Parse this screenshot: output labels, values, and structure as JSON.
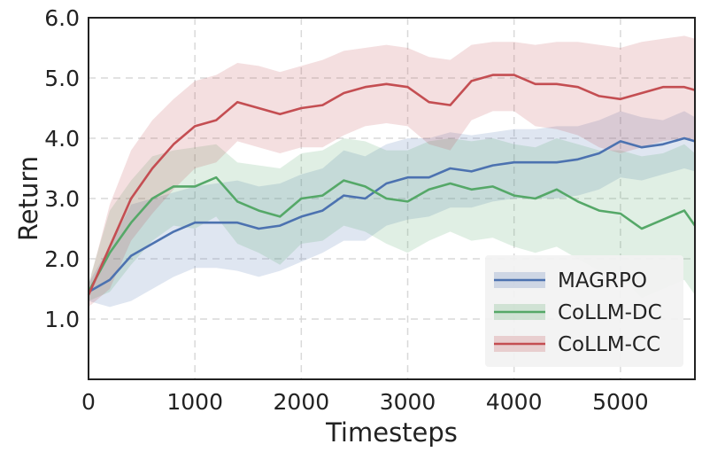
{
  "chart_data": {
    "type": "line",
    "xlabel": "Timesteps",
    "ylabel": "Return",
    "xlim": [
      0,
      5700
    ],
    "ylim": [
      0,
      6.0
    ],
    "xticks": [
      0,
      1000,
      2000,
      3000,
      4000,
      5000
    ],
    "xtick_labels": [
      "0",
      "1000",
      "2000",
      "3000",
      "4000",
      "5000"
    ],
    "yticks": [
      1,
      2,
      3,
      4,
      5,
      6
    ],
    "ytick_labels": [
      "1.0",
      "2.0",
      "3.0",
      "4.0",
      "5.0",
      "6.0"
    ],
    "grid": true,
    "legend_position": "bottom-right",
    "x": [
      0,
      200,
      400,
      600,
      800,
      1000,
      1200,
      1400,
      1600,
      1800,
      2000,
      2200,
      2400,
      2600,
      2800,
      3000,
      3200,
      3400,
      3600,
      3800,
      4000,
      4200,
      4400,
      4600,
      4800,
      5000,
      5200,
      5400,
      5600,
      5700
    ],
    "series": [
      {
        "name": "MAGRPO",
        "color": "#4c72b0",
        "values": [
          1.45,
          1.65,
          2.05,
          2.25,
          2.45,
          2.6,
          2.6,
          2.6,
          2.5,
          2.55,
          2.7,
          2.8,
          3.05,
          3.0,
          3.25,
          3.35,
          3.35,
          3.5,
          3.45,
          3.55,
          3.6,
          3.6,
          3.6,
          3.65,
          3.75,
          3.95,
          3.85,
          3.9,
          4.0,
          3.95
        ],
        "upper": [
          1.6,
          2.2,
          2.9,
          3.0,
          3.1,
          3.2,
          3.25,
          3.3,
          3.2,
          3.25,
          3.4,
          3.5,
          3.8,
          3.7,
          3.9,
          4.0,
          4.0,
          4.1,
          4.05,
          4.1,
          4.15,
          4.15,
          4.2,
          4.2,
          4.3,
          4.45,
          4.35,
          4.3,
          4.45,
          4.35
        ],
        "lower": [
          1.3,
          1.2,
          1.3,
          1.5,
          1.7,
          1.85,
          1.85,
          1.8,
          1.7,
          1.8,
          1.95,
          2.1,
          2.3,
          2.3,
          2.55,
          2.65,
          2.7,
          2.85,
          2.85,
          2.95,
          3.0,
          3.0,
          3.0,
          3.05,
          3.15,
          3.35,
          3.3,
          3.4,
          3.5,
          3.45
        ]
      },
      {
        "name": "CoLLM-DC",
        "color": "#55a868",
        "values": [
          1.45,
          2.1,
          2.6,
          3.0,
          3.2,
          3.2,
          3.35,
          2.95,
          2.8,
          2.7,
          3.0,
          3.05,
          3.3,
          3.2,
          3.0,
          2.95,
          3.15,
          3.25,
          3.15,
          3.2,
          3.05,
          3.0,
          3.15,
          2.95,
          2.8,
          2.75,
          2.5,
          2.65,
          2.8,
          2.55
        ],
        "upper": [
          1.6,
          2.8,
          3.3,
          3.7,
          3.8,
          3.85,
          3.9,
          3.6,
          3.55,
          3.5,
          3.75,
          3.8,
          4.0,
          3.95,
          3.8,
          3.8,
          3.95,
          4.0,
          3.95,
          4.0,
          3.9,
          3.85,
          4.0,
          3.9,
          3.8,
          3.8,
          3.7,
          3.75,
          3.9,
          3.75
        ],
        "lower": [
          1.3,
          1.45,
          1.9,
          2.3,
          2.55,
          2.5,
          2.7,
          2.25,
          2.1,
          1.9,
          2.25,
          2.3,
          2.55,
          2.45,
          2.25,
          2.1,
          2.3,
          2.45,
          2.3,
          2.35,
          2.2,
          2.1,
          2.2,
          2.0,
          1.8,
          1.7,
          1.35,
          1.5,
          1.65,
          1.4
        ]
      },
      {
        "name": "CoLLM-CC",
        "color": "#c44e52",
        "values": [
          1.4,
          2.2,
          3.0,
          3.5,
          3.9,
          4.2,
          4.3,
          4.6,
          4.5,
          4.4,
          4.5,
          4.55,
          4.75,
          4.85,
          4.9,
          4.85,
          4.6,
          4.55,
          4.95,
          5.05,
          5.05,
          4.9,
          4.9,
          4.85,
          4.7,
          4.65,
          4.75,
          4.85,
          4.85,
          4.8
        ],
        "upper": [
          1.55,
          2.9,
          3.8,
          4.3,
          4.65,
          4.95,
          5.05,
          5.25,
          5.2,
          5.1,
          5.2,
          5.3,
          5.45,
          5.5,
          5.55,
          5.5,
          5.35,
          5.3,
          5.55,
          5.6,
          5.6,
          5.55,
          5.6,
          5.6,
          5.55,
          5.5,
          5.6,
          5.65,
          5.7,
          5.65
        ],
        "lower": [
          1.2,
          1.5,
          2.3,
          2.75,
          3.15,
          3.5,
          3.6,
          3.95,
          3.85,
          3.75,
          3.85,
          3.85,
          4.05,
          4.2,
          4.25,
          4.2,
          3.9,
          3.8,
          4.3,
          4.45,
          4.45,
          4.2,
          4.15,
          4.05,
          3.85,
          3.75,
          3.85,
          3.95,
          4.0,
          3.95
        ]
      }
    ]
  }
}
